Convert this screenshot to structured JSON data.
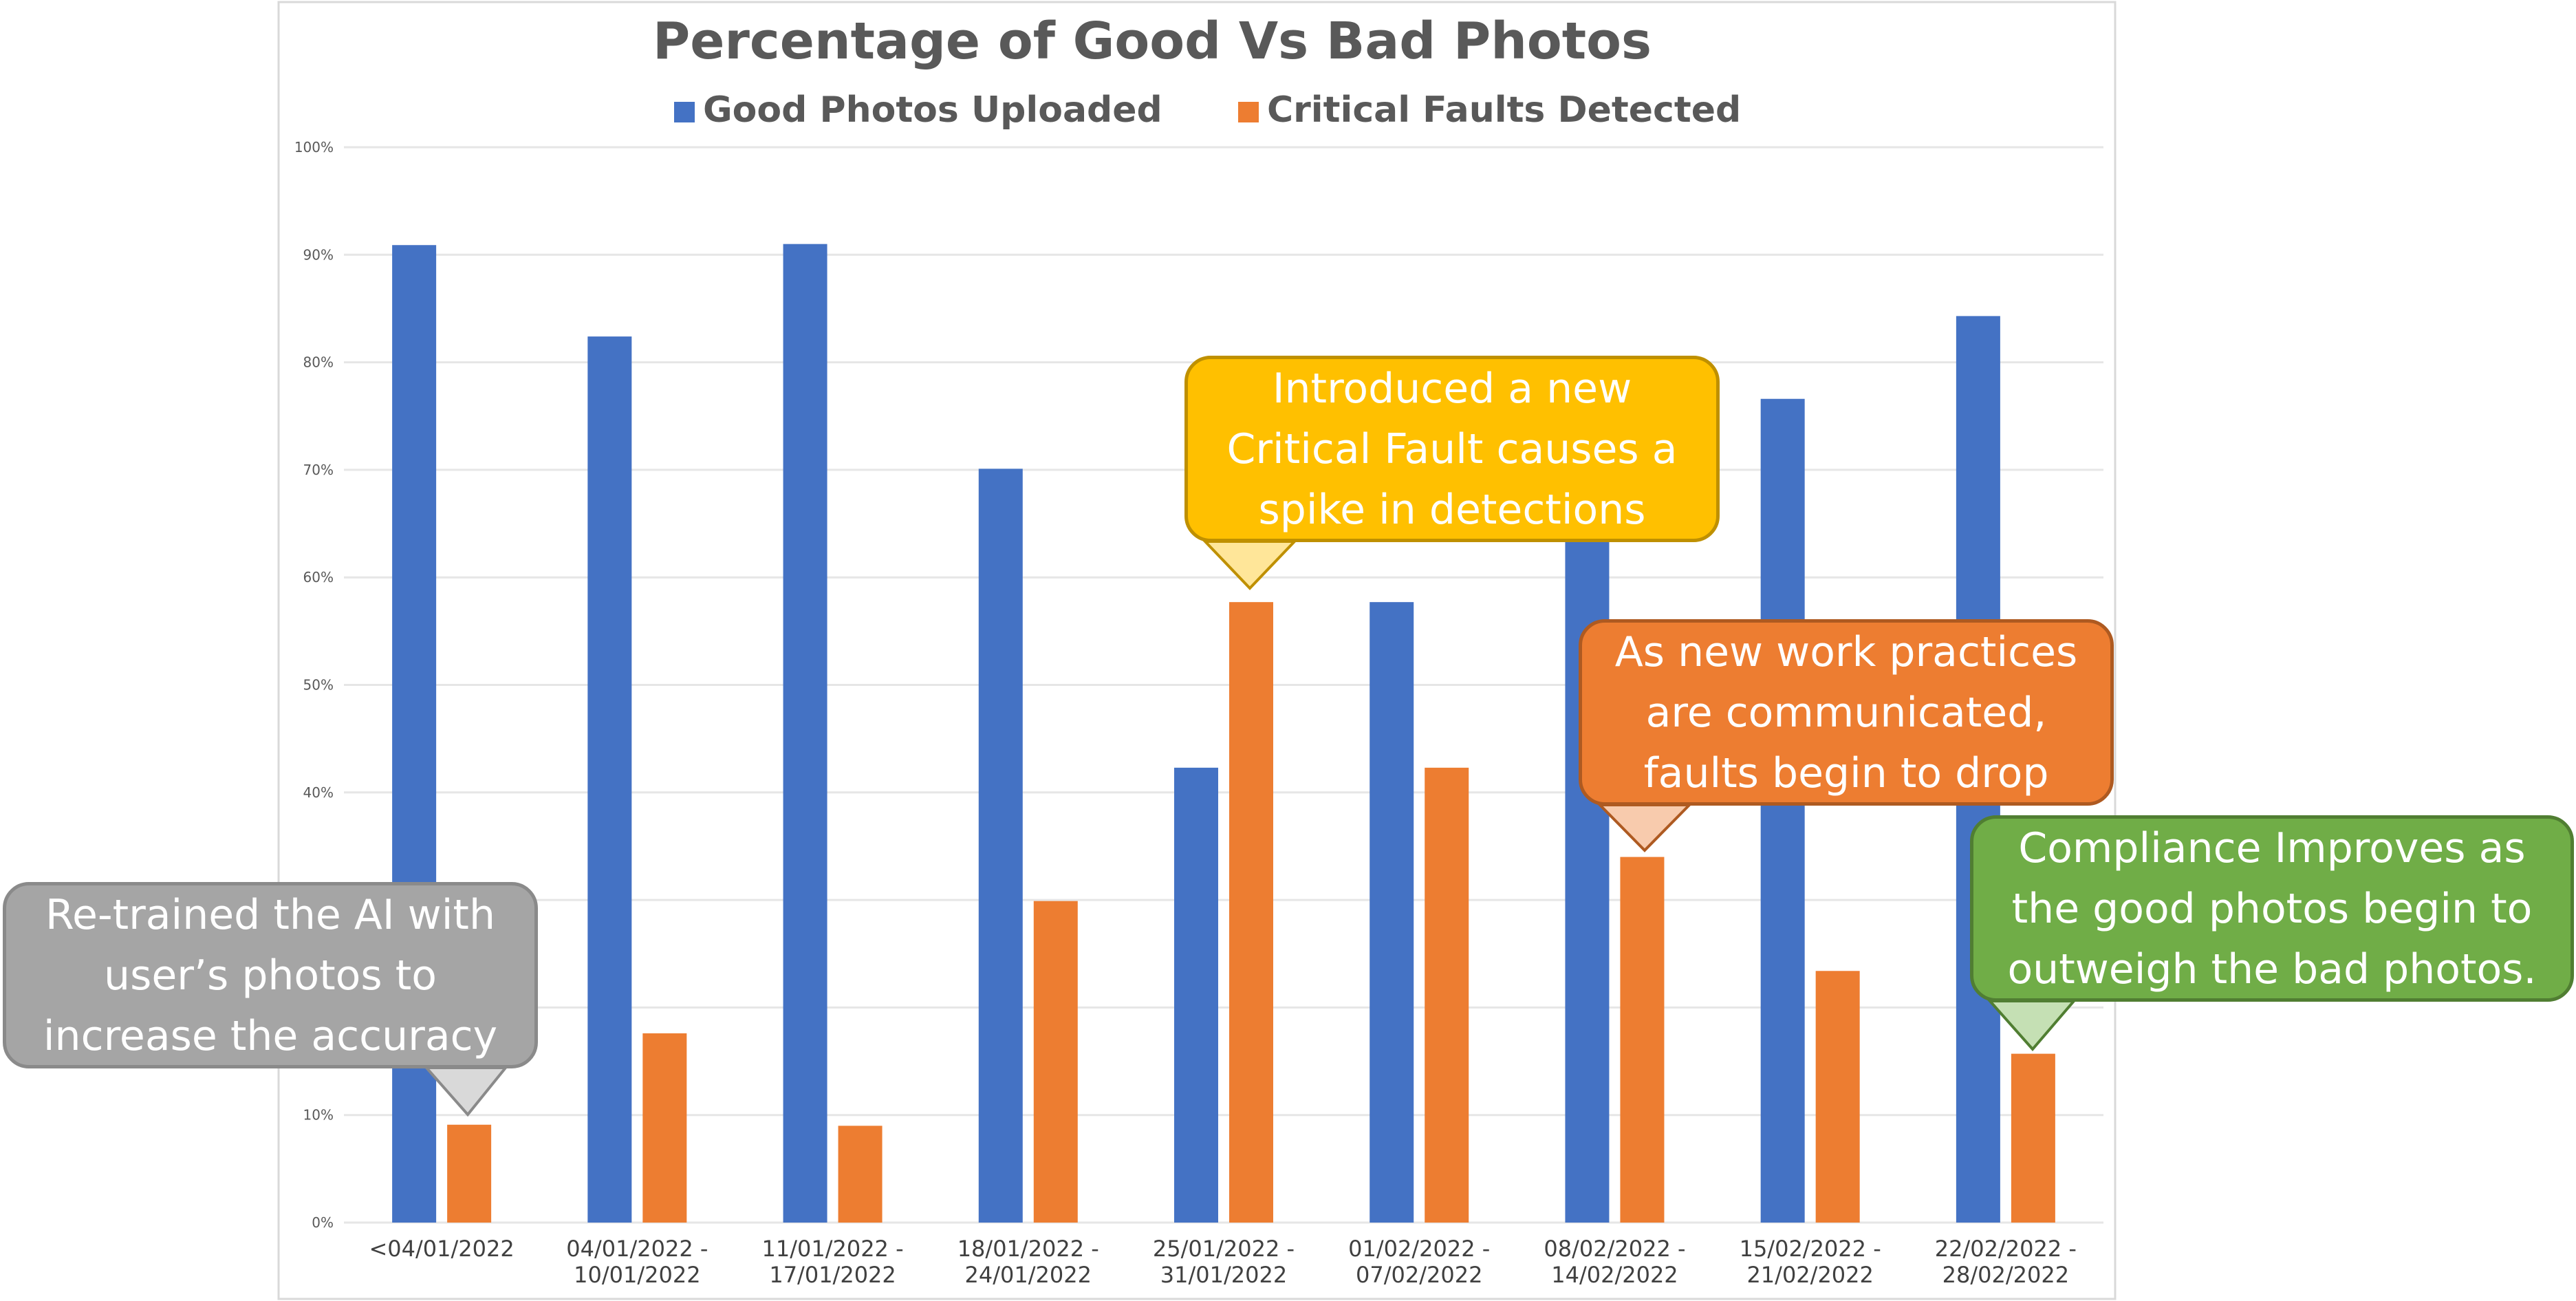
{
  "chart_data": {
    "type": "bar",
    "title": "Percentage of Good Vs Bad Photos",
    "xlabel": "",
    "ylabel": "",
    "ylim": [
      0,
      100
    ],
    "yticks": [
      "0%",
      "10%",
      "20%",
      "30%",
      "40%",
      "50%",
      "60%",
      "70%",
      "80%",
      "90%",
      "100%"
    ],
    "grid": true,
    "legend_position": "top",
    "categories": [
      "<04/01/2022",
      "04/01/2022 -\n10/01/2022",
      "11/01/2022 -\n17/01/2022",
      "18/01/2022 -\n24/01/2022",
      "25/01/2022 -\n31/01/2022",
      "01/02/2022 -\n07/02/2022",
      "08/02/2022 -\n14/02/2022",
      "15/02/2022 -\n21/02/2022",
      "22/02/2022 -\n28/02/2022"
    ],
    "series": [
      {
        "name": "Good Photos Uploaded",
        "color": "#4472C4",
        "values": [
          90.9,
          82.4,
          91.0,
          70.1,
          42.3,
          57.7,
          66.0,
          76.6,
          84.3
        ]
      },
      {
        "name": "Critical Faults Detected",
        "color": "#ED7D31",
        "values": [
          9.1,
          17.6,
          9.0,
          29.9,
          57.7,
          42.3,
          34.0,
          23.4,
          15.7
        ]
      }
    ]
  },
  "callouts": [
    {
      "id": "retrained",
      "text": "Re-trained the AI with\nuser’s photos to\nincrease the accuracy",
      "fill": "#A5A5A5",
      "border": "#8A8A8A",
      "tip_fill": "#D9D9D9"
    },
    {
      "id": "new-fault",
      "text": "Introduced a new\nCritical Fault causes a\nspike in detections",
      "fill": "#FFC000",
      "border": "#BF9000",
      "tip_fill": "#FFE699"
    },
    {
      "id": "practices",
      "text": "As new work practices\nare communicated,\nfaults begin to drop",
      "fill": "#ED7D31",
      "border": "#AE5A21",
      "tip_fill": "#F8CBAD"
    },
    {
      "id": "compliance",
      "text": "Compliance Improves as\nthe good photos begin to\noutweigh the bad photos.",
      "fill": "#70AD47",
      "border": "#507E32",
      "tip_fill": "#C5E0B4"
    }
  ]
}
